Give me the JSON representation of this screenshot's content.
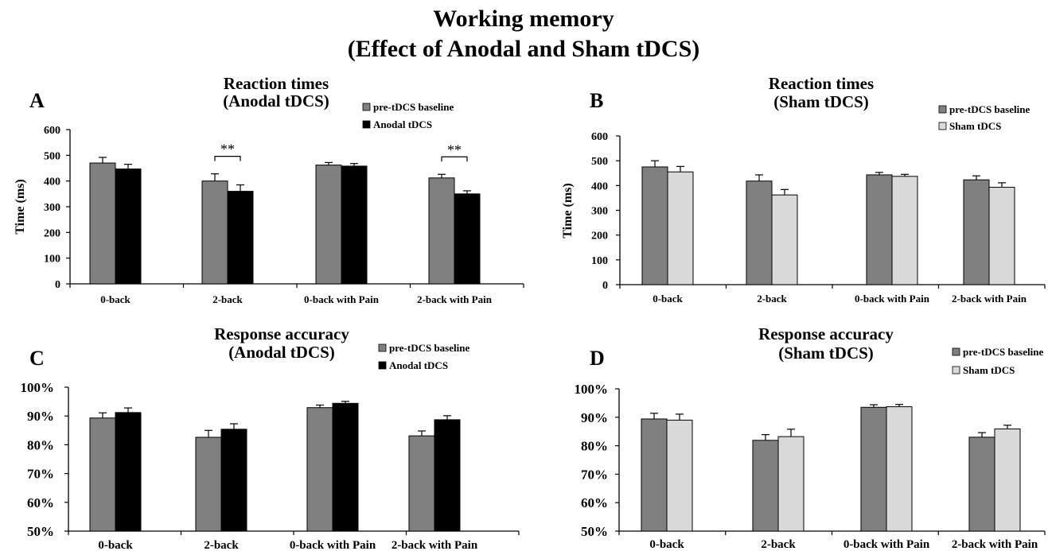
{
  "figure": {
    "title_line1": "Working memory",
    "title_line2": "(Effect of Anodal and Sham tDCS)"
  },
  "colors": {
    "baseline": "#808080",
    "anodal": "#000000",
    "sham": "#d9d9d9",
    "axis": "#000000"
  },
  "chart_data": [
    {
      "panel": "A",
      "type": "bar",
      "title": [
        "Reaction times",
        "(Anodal tDCS)"
      ],
      "ylabel": "Time (ms)",
      "ylim": [
        0,
        600
      ],
      "yticks": [
        "0",
        "100",
        "200",
        "300",
        "400",
        "500",
        "600"
      ],
      "categories": [
        "0-back",
        "2-back",
        "0-back with Pain",
        "2-back with Pain"
      ],
      "series": [
        {
          "name": "pre-tDCS baseline",
          "values": [
            470,
            400,
            462,
            412
          ],
          "errors": [
            22,
            28,
            10,
            14
          ]
        },
        {
          "name": "Anodal tDCS",
          "values": [
            447,
            360,
            458,
            350
          ],
          "errors": [
            18,
            25,
            10,
            12
          ]
        }
      ],
      "annotations": [
        {
          "category": "2-back",
          "text": "**"
        },
        {
          "category": "2-back with Pain",
          "text": "**"
        }
      ],
      "legend": "top-right"
    },
    {
      "panel": "B",
      "type": "bar",
      "title": [
        "Reaction times",
        "(Sham tDCS)"
      ],
      "ylabel": "Time (ms)",
      "ylim": [
        0,
        600
      ],
      "yticks": [
        "0",
        "100",
        "200",
        "300",
        "400",
        "500",
        "600"
      ],
      "categories": [
        "0-back",
        "2-back",
        "0-back with Pain",
        "2-back with Pain"
      ],
      "series": [
        {
          "name": "pre-tDCS baseline",
          "values": [
            475,
            418,
            443,
            423
          ],
          "errors": [
            25,
            25,
            10,
            16
          ]
        },
        {
          "name": "Sham tDCS",
          "values": [
            455,
            362,
            437,
            393
          ],
          "errors": [
            22,
            22,
            8,
            18
          ]
        }
      ],
      "legend": "top-right"
    },
    {
      "panel": "C",
      "type": "bar",
      "title": [
        "Response accuracy",
        "(Anodal tDCS)"
      ],
      "ylabel": "",
      "ylim": [
        50,
        100
      ],
      "yticks": [
        "50%",
        "60%",
        "70%",
        "80%",
        "90%",
        "100%"
      ],
      "categories": [
        "0-back",
        "2-back",
        "0-back with Pain",
        "2-back with Pain"
      ],
      "series": [
        {
          "name": "pre-tDCS baseline",
          "values": [
            89.3,
            82.6,
            92.9,
            83.1
          ],
          "errors": [
            1.8,
            2.4,
            0.9,
            1.7
          ]
        },
        {
          "name": "Anodal tDCS",
          "values": [
            91.2,
            85.4,
            94.4,
            88.7
          ],
          "errors": [
            1.6,
            1.9,
            0.7,
            1.4
          ]
        }
      ],
      "legend": "top-right"
    },
    {
      "panel": "D",
      "type": "bar",
      "title": [
        "Response accuracy",
        "(Sham tDCS)"
      ],
      "ylabel": "",
      "ylim": [
        50,
        100
      ],
      "yticks": [
        "50%",
        "60%",
        "70%",
        "80%",
        "90%",
        "100%"
      ],
      "categories": [
        "0-back",
        "2-back",
        "0-back with Pain",
        "2-back with Pain"
      ],
      "series": [
        {
          "name": "pre-tDCS baseline",
          "values": [
            89.4,
            81.9,
            93.5,
            83.0
          ],
          "errors": [
            2.0,
            2.0,
            0.9,
            1.6
          ]
        },
        {
          "name": "Sham tDCS",
          "values": [
            89.0,
            83.2,
            93.7,
            85.9
          ],
          "errors": [
            2.1,
            2.6,
            0.8,
            1.3
          ]
        }
      ],
      "legend": "top-right"
    }
  ]
}
